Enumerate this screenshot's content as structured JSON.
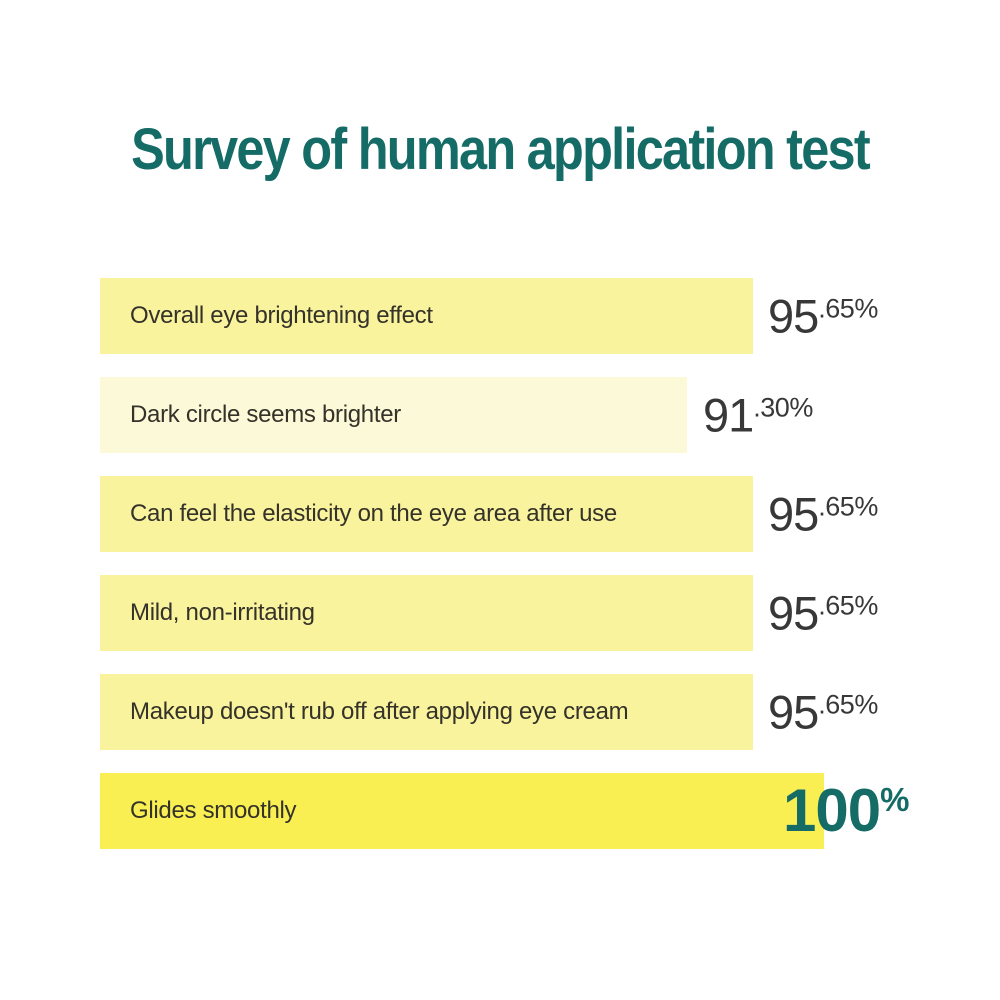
{
  "title": "Survey of human application test",
  "colors": {
    "title_teal": "#156B66",
    "bar_yellow": "#FAF39E",
    "bar_pale_yellow": "#FCF9D9",
    "bar_bright_yellow": "#F9EF53",
    "value_dark": "#383838",
    "label_dark": "#343229",
    "background": "#FFFFFF"
  },
  "rows": [
    {
      "label": "Overall eye brightening effect",
      "value_main": "95",
      "value_frac": ".65%"
    },
    {
      "label": "Dark circle seems brighter",
      "value_main": "91",
      "value_frac": ".30%"
    },
    {
      "label": "Can feel the elasticity on the eye area after use",
      "value_main": "95",
      "value_frac": ".65%"
    },
    {
      "label": "Mild, non-irritating",
      "value_main": "95",
      "value_frac": ".65%"
    },
    {
      "label": "Makeup doesn't rub off after applying eye cream",
      "value_main": "95",
      "value_frac": ".65%"
    },
    {
      "label": "Glides smoothly",
      "value_main": "100",
      "value_frac": "%"
    }
  ],
  "chart_data": {
    "type": "bar",
    "orientation": "horizontal",
    "title": "Survey of human application test",
    "categories": [
      "Overall eye brightening effect",
      "Dark circle seems brighter",
      "Can feel the elasticity on the eye area after use",
      "Mild, non-irritating",
      "Makeup doesn't rub off after applying eye cream",
      "Glides smoothly"
    ],
    "values": [
      95.65,
      91.3,
      95.65,
      95.65,
      95.65,
      100
    ],
    "unit": "%",
    "xlabel": "",
    "ylabel": "",
    "xlim": [
      0,
      100
    ],
    "grid": false,
    "legend": false,
    "data_labels": [
      "95.65%",
      "91.30%",
      "95.65%",
      "95.65%",
      "95.65%",
      "100%"
    ],
    "highlight_index": 5
  }
}
